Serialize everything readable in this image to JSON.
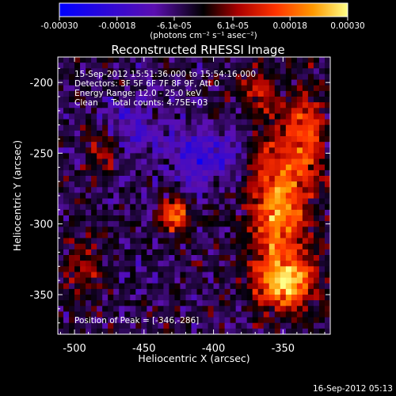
{
  "chart_data": {
    "type": "heatmap",
    "title": "Reconstructed RHESSI Image",
    "xlabel": "Heliocentric X (arcsec)",
    "ylabel": "Heliocentric Y (arcsec)",
    "xlim": [
      -512,
      -316
    ],
    "ylim": [
      -378,
      -182
    ],
    "x_ticks": [
      -500,
      -450,
      -400,
      -350
    ],
    "y_ticks": [
      -200,
      -250,
      -300,
      -350
    ],
    "x_tick_labels": [
      "-500",
      "-450",
      "-400",
      "-350"
    ],
    "y_tick_labels": [
      "-200",
      "-250",
      "-300",
      "-350"
    ],
    "colorbar": {
      "range": [
        -0.0003,
        0.0003
      ],
      "ticks": [
        -0.0003,
        -0.00018,
        -6.1e-05,
        6.1e-05,
        0.00018,
        0.0003
      ],
      "tick_labels": [
        "-0.00030",
        "-0.00018",
        "-6.1e-05",
        "6.1e-05",
        "0.00018",
        "0.00030"
      ],
      "unit_label": "(photons cm⁻² s⁻¹ asec⁻²)"
    },
    "annotations": [
      "15-Sep-2012 15:51:36.000 to 15:54:16.000",
      "Detectors: 3F 5F 6F 7F 8F 9F, Att 0",
      "Energy Range: 12.0 - 25.0 keV",
      "Clean     Total counts: 4.75E+03"
    ],
    "peak_label": "Position of Peak = [-346,-286]",
    "peak": [
      -346,
      -286
    ],
    "footer_timestamp": "16-Sep-2012 05:13",
    "sources": [
      {
        "x": -355,
        "y": -285,
        "amp": 0.00026,
        "sx": 14,
        "sy": 35
      },
      {
        "x": -350,
        "y": -340,
        "amp": 0.00028,
        "sx": 14,
        "sy": 12
      },
      {
        "x": -430,
        "y": -292,
        "amp": 0.00024,
        "sx": 7,
        "sy": 8
      },
      {
        "x": -335,
        "y": -235,
        "amp": 0.00018,
        "sx": 9,
        "sy": 22
      },
      {
        "x": -370,
        "y": -205,
        "amp": 0.00014,
        "sx": 8,
        "sy": 10
      },
      {
        "x": -480,
        "y": -245,
        "amp": 0.00011,
        "sx": 9,
        "sy": 10
      },
      {
        "x": -495,
        "y": -325,
        "amp": 0.0001,
        "sx": 10,
        "sy": 18
      },
      {
        "x": -410,
        "y": -250,
        "amp": -0.00015,
        "sx": 18,
        "sy": 14
      },
      {
        "x": -460,
        "y": -230,
        "amp": -0.0001,
        "sx": 16,
        "sy": 14
      }
    ],
    "background_level": -4e-05,
    "noise_amplitude": 0.00012
  }
}
